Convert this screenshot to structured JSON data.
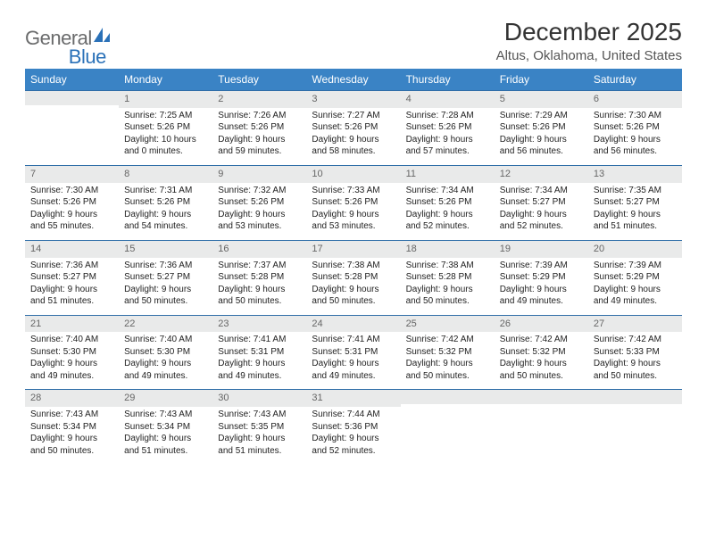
{
  "logo": {
    "text_general": "General",
    "text_blue": "Blue"
  },
  "title": "December 2025",
  "location": "Altus, Oklahoma, United States",
  "header_bg": "#3a83c5",
  "header_fg": "#ffffff",
  "daynum_bg": "#e9eaea",
  "week_border": "#2f6ea8",
  "columns": [
    "Sunday",
    "Monday",
    "Tuesday",
    "Wednesday",
    "Thursday",
    "Friday",
    "Saturday"
  ],
  "weeks": [
    [
      {
        "n": "",
        "sr": "",
        "ss": "",
        "dl1": "",
        "dl2": ""
      },
      {
        "n": "1",
        "sr": "Sunrise: 7:25 AM",
        "ss": "Sunset: 5:26 PM",
        "dl1": "Daylight: 10 hours",
        "dl2": "and 0 minutes."
      },
      {
        "n": "2",
        "sr": "Sunrise: 7:26 AM",
        "ss": "Sunset: 5:26 PM",
        "dl1": "Daylight: 9 hours",
        "dl2": "and 59 minutes."
      },
      {
        "n": "3",
        "sr": "Sunrise: 7:27 AM",
        "ss": "Sunset: 5:26 PM",
        "dl1": "Daylight: 9 hours",
        "dl2": "and 58 minutes."
      },
      {
        "n": "4",
        "sr": "Sunrise: 7:28 AM",
        "ss": "Sunset: 5:26 PM",
        "dl1": "Daylight: 9 hours",
        "dl2": "and 57 minutes."
      },
      {
        "n": "5",
        "sr": "Sunrise: 7:29 AM",
        "ss": "Sunset: 5:26 PM",
        "dl1": "Daylight: 9 hours",
        "dl2": "and 56 minutes."
      },
      {
        "n": "6",
        "sr": "Sunrise: 7:30 AM",
        "ss": "Sunset: 5:26 PM",
        "dl1": "Daylight: 9 hours",
        "dl2": "and 56 minutes."
      }
    ],
    [
      {
        "n": "7",
        "sr": "Sunrise: 7:30 AM",
        "ss": "Sunset: 5:26 PM",
        "dl1": "Daylight: 9 hours",
        "dl2": "and 55 minutes."
      },
      {
        "n": "8",
        "sr": "Sunrise: 7:31 AM",
        "ss": "Sunset: 5:26 PM",
        "dl1": "Daylight: 9 hours",
        "dl2": "and 54 minutes."
      },
      {
        "n": "9",
        "sr": "Sunrise: 7:32 AM",
        "ss": "Sunset: 5:26 PM",
        "dl1": "Daylight: 9 hours",
        "dl2": "and 53 minutes."
      },
      {
        "n": "10",
        "sr": "Sunrise: 7:33 AM",
        "ss": "Sunset: 5:26 PM",
        "dl1": "Daylight: 9 hours",
        "dl2": "and 53 minutes."
      },
      {
        "n": "11",
        "sr": "Sunrise: 7:34 AM",
        "ss": "Sunset: 5:26 PM",
        "dl1": "Daylight: 9 hours",
        "dl2": "and 52 minutes."
      },
      {
        "n": "12",
        "sr": "Sunrise: 7:34 AM",
        "ss": "Sunset: 5:27 PM",
        "dl1": "Daylight: 9 hours",
        "dl2": "and 52 minutes."
      },
      {
        "n": "13",
        "sr": "Sunrise: 7:35 AM",
        "ss": "Sunset: 5:27 PM",
        "dl1": "Daylight: 9 hours",
        "dl2": "and 51 minutes."
      }
    ],
    [
      {
        "n": "14",
        "sr": "Sunrise: 7:36 AM",
        "ss": "Sunset: 5:27 PM",
        "dl1": "Daylight: 9 hours",
        "dl2": "and 51 minutes."
      },
      {
        "n": "15",
        "sr": "Sunrise: 7:36 AM",
        "ss": "Sunset: 5:27 PM",
        "dl1": "Daylight: 9 hours",
        "dl2": "and 50 minutes."
      },
      {
        "n": "16",
        "sr": "Sunrise: 7:37 AM",
        "ss": "Sunset: 5:28 PM",
        "dl1": "Daylight: 9 hours",
        "dl2": "and 50 minutes."
      },
      {
        "n": "17",
        "sr": "Sunrise: 7:38 AM",
        "ss": "Sunset: 5:28 PM",
        "dl1": "Daylight: 9 hours",
        "dl2": "and 50 minutes."
      },
      {
        "n": "18",
        "sr": "Sunrise: 7:38 AM",
        "ss": "Sunset: 5:28 PM",
        "dl1": "Daylight: 9 hours",
        "dl2": "and 50 minutes."
      },
      {
        "n": "19",
        "sr": "Sunrise: 7:39 AM",
        "ss": "Sunset: 5:29 PM",
        "dl1": "Daylight: 9 hours",
        "dl2": "and 49 minutes."
      },
      {
        "n": "20",
        "sr": "Sunrise: 7:39 AM",
        "ss": "Sunset: 5:29 PM",
        "dl1": "Daylight: 9 hours",
        "dl2": "and 49 minutes."
      }
    ],
    [
      {
        "n": "21",
        "sr": "Sunrise: 7:40 AM",
        "ss": "Sunset: 5:30 PM",
        "dl1": "Daylight: 9 hours",
        "dl2": "and 49 minutes."
      },
      {
        "n": "22",
        "sr": "Sunrise: 7:40 AM",
        "ss": "Sunset: 5:30 PM",
        "dl1": "Daylight: 9 hours",
        "dl2": "and 49 minutes."
      },
      {
        "n": "23",
        "sr": "Sunrise: 7:41 AM",
        "ss": "Sunset: 5:31 PM",
        "dl1": "Daylight: 9 hours",
        "dl2": "and 49 minutes."
      },
      {
        "n": "24",
        "sr": "Sunrise: 7:41 AM",
        "ss": "Sunset: 5:31 PM",
        "dl1": "Daylight: 9 hours",
        "dl2": "and 49 minutes."
      },
      {
        "n": "25",
        "sr": "Sunrise: 7:42 AM",
        "ss": "Sunset: 5:32 PM",
        "dl1": "Daylight: 9 hours",
        "dl2": "and 50 minutes."
      },
      {
        "n": "26",
        "sr": "Sunrise: 7:42 AM",
        "ss": "Sunset: 5:32 PM",
        "dl1": "Daylight: 9 hours",
        "dl2": "and 50 minutes."
      },
      {
        "n": "27",
        "sr": "Sunrise: 7:42 AM",
        "ss": "Sunset: 5:33 PM",
        "dl1": "Daylight: 9 hours",
        "dl2": "and 50 minutes."
      }
    ],
    [
      {
        "n": "28",
        "sr": "Sunrise: 7:43 AM",
        "ss": "Sunset: 5:34 PM",
        "dl1": "Daylight: 9 hours",
        "dl2": "and 50 minutes."
      },
      {
        "n": "29",
        "sr": "Sunrise: 7:43 AM",
        "ss": "Sunset: 5:34 PM",
        "dl1": "Daylight: 9 hours",
        "dl2": "and 51 minutes."
      },
      {
        "n": "30",
        "sr": "Sunrise: 7:43 AM",
        "ss": "Sunset: 5:35 PM",
        "dl1": "Daylight: 9 hours",
        "dl2": "and 51 minutes."
      },
      {
        "n": "31",
        "sr": "Sunrise: 7:44 AM",
        "ss": "Sunset: 5:36 PM",
        "dl1": "Daylight: 9 hours",
        "dl2": "and 52 minutes."
      },
      {
        "n": "",
        "sr": "",
        "ss": "",
        "dl1": "",
        "dl2": ""
      },
      {
        "n": "",
        "sr": "",
        "ss": "",
        "dl1": "",
        "dl2": ""
      },
      {
        "n": "",
        "sr": "",
        "ss": "",
        "dl1": "",
        "dl2": ""
      }
    ]
  ]
}
